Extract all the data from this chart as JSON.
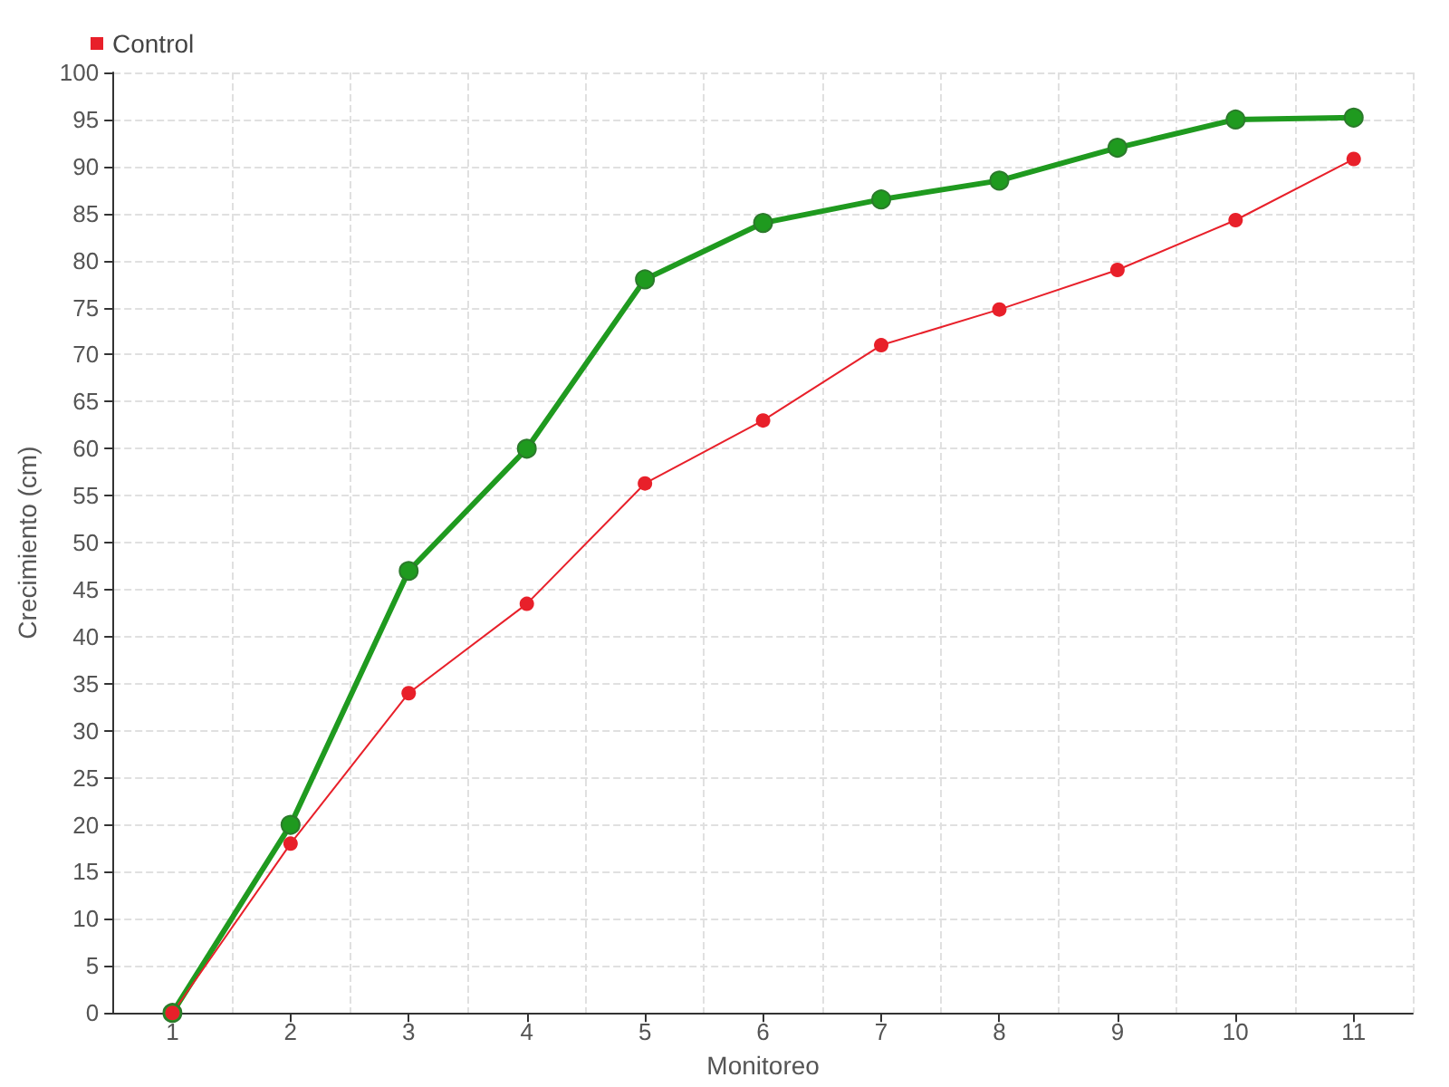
{
  "chart_data": {
    "type": "line",
    "xlabel": "Monitoreo",
    "ylabel": "Crecimiento (cm)",
    "categories": [
      "1",
      "2",
      "3",
      "4",
      "5",
      "6",
      "7",
      "8",
      "9",
      "10",
      "11"
    ],
    "series": [
      {
        "color": "#1f9a1f",
        "values": [
          0,
          20,
          47,
          60,
          78,
          84,
          86.5,
          88.5,
          92,
          95,
          95.2
        ]
      },
      {
        "name": "Control",
        "color": "#e8202a",
        "values": [
          0,
          18,
          34,
          43.5,
          56.3,
          63,
          71,
          74.8,
          79,
          84.3,
          90.8
        ]
      }
    ],
    "ylim": [
      0,
      100
    ],
    "yticks": [
      0,
      5,
      10,
      15,
      20,
      25,
      30,
      35,
      40,
      45,
      50,
      55,
      60,
      65,
      70,
      75,
      80,
      85,
      90,
      95,
      100
    ],
    "grid": true,
    "legend": "top left",
    "marker": "circle",
    "line_style": "solid"
  }
}
